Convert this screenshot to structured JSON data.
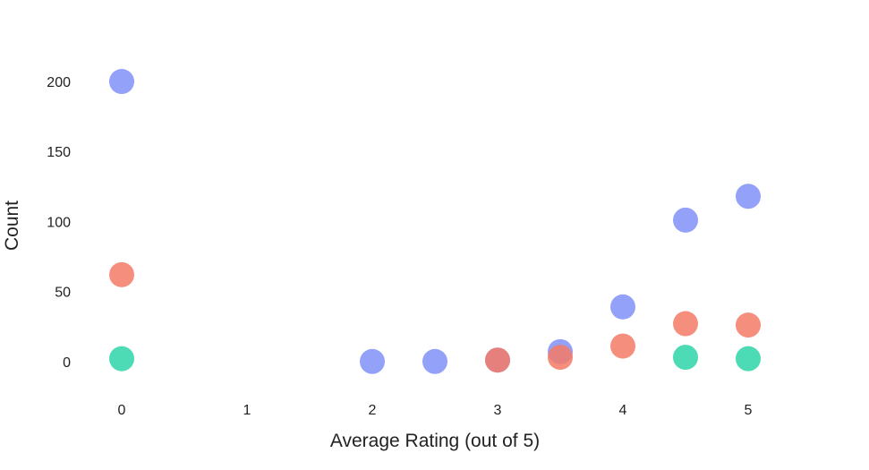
{
  "chart_data": {
    "type": "scatter",
    "title": "",
    "xlabel": "Average Rating (out of 5)",
    "ylabel": "Count",
    "xlim": [
      -0.2,
      5.8
    ],
    "ylim": [
      -27,
      232
    ],
    "x_ticks": [
      0,
      1,
      2,
      3,
      4,
      5
    ],
    "y_ticks": [
      0,
      50,
      100,
      150,
      200
    ],
    "grid": false,
    "legend": "none",
    "series": [
      {
        "color": "#8090f8",
        "points": [
          [
            0,
            200
          ],
          [
            2,
            0
          ],
          [
            2.5,
            0
          ],
          [
            3,
            1
          ],
          [
            3.5,
            7
          ],
          [
            4,
            39
          ],
          [
            4.5,
            101
          ],
          [
            5,
            118
          ]
        ]
      },
      {
        "color": "#f47a66",
        "points": [
          [
            0,
            62
          ],
          [
            3,
            1
          ],
          [
            3.5,
            3
          ],
          [
            4,
            11
          ],
          [
            4.5,
            27
          ],
          [
            5,
            26
          ]
        ]
      },
      {
        "color": "#2ed5a8",
        "points": [
          [
            0,
            2
          ],
          [
            4.5,
            3
          ],
          [
            5,
            2
          ]
        ]
      }
    ]
  }
}
